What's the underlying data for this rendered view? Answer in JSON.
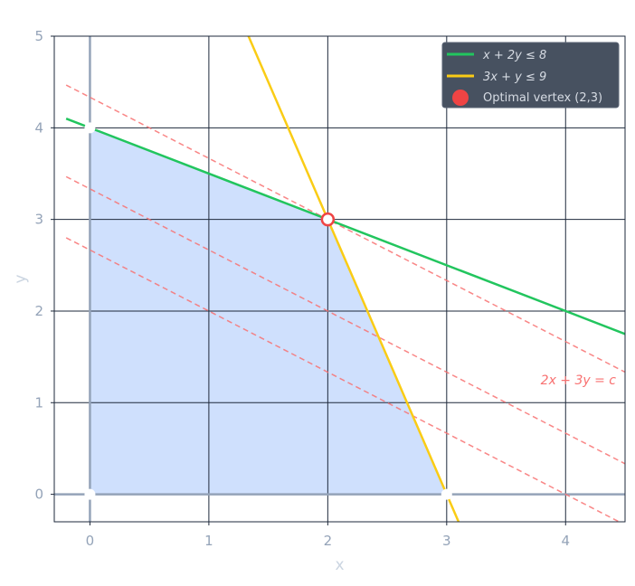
{
  "chart_data": {
    "type": "line",
    "xlabel": "x",
    "ylabel": "y",
    "xlim": [
      -0.3,
      4.5
    ],
    "ylim": [
      -0.3,
      5
    ],
    "xticks": [
      0,
      1,
      2,
      3,
      4
    ],
    "yticks": [
      0,
      1,
      2,
      3,
      4,
      5
    ],
    "grid": true,
    "legend_position": "top-right",
    "feasible_region": {
      "vertices": [
        [
          0,
          0
        ],
        [
          0,
          4
        ],
        [
          2,
          3
        ],
        [
          3,
          0
        ]
      ],
      "color": "#cfe0fd"
    },
    "vertex_markers": [
      [
        0,
        4
      ],
      [
        0,
        0
      ],
      [
        3,
        0
      ]
    ],
    "series": [
      {
        "name": "x + 2y ≤ 8",
        "a": 1,
        "b": 2,
        "c": 8,
        "x_range": [
          -0.2,
          4.5
        ],
        "color": "#22c55e"
      },
      {
        "name": "3x + y ≤ 9",
        "a": 3,
        "b": 1,
        "c": 9,
        "y_range": [
          -0.3,
          5
        ],
        "color": "#facc15"
      }
    ],
    "objective_lines": {
      "label": "2x + 3y = c",
      "a": 2,
      "b": 3,
      "c_values": [
        8,
        10,
        13
      ],
      "x_range": [
        -0.2,
        4.5
      ],
      "color": "#f87171"
    },
    "optimal": {
      "name": "Optimal vertex (2,3)",
      "x": 2,
      "y": 3,
      "color": "#ef4444"
    }
  }
}
